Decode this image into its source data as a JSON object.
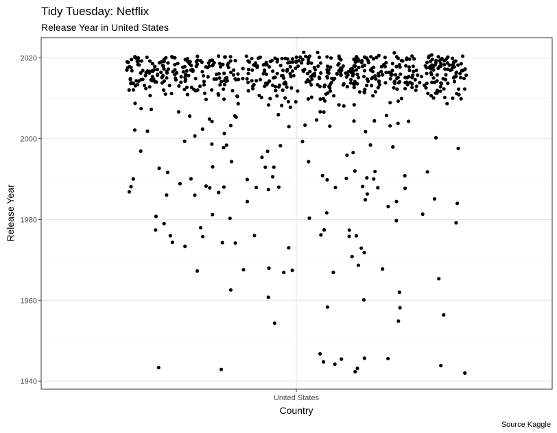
{
  "chart_data": {
    "type": "scatter",
    "title": "Tidy Tuesday: Netflix",
    "subtitle": "Release Year in United States",
    "xlabel": "Country",
    "ylabel": "Release Year",
    "caption": "Source Kaggle",
    "categories": [
      "United States"
    ],
    "x_tick_labels": [
      "United States"
    ],
    "y_ticks": [
      1940,
      1960,
      1980,
      2000,
      2020
    ],
    "ylim": [
      1938,
      2025
    ],
    "grid": true,
    "jitter": true,
    "point_color": "#000000",
    "values": [
      1976,
      1945,
      1943,
      1973,
      1990,
      1988,
      1980,
      1945,
      1967,
      1981,
      1979,
      1992,
      1943,
      1965,
      1968,
      1988,
      1989,
      1976,
      1984,
      1968,
      1954,
      1991,
      1994,
      1946,
      1982,
      1973,
      1972,
      1988,
      1987,
      1991,
      1999,
      1997,
      1998,
      1961,
      1962,
      1980,
      1944,
      1990,
      1988,
      1971,
      1967,
      1986,
      1985,
      1988,
      1996,
      1958,
      1974,
      1942,
      1990,
      1942,
      1976,
      1977,
      1981,
      1998,
      1994,
      1988,
      1993,
      1987,
      1986,
      1984,
      1958,
      1963,
      1993,
      1990,
      1992,
      1977,
      1969,
      1947,
      1976,
      1974,
      1990,
      1988,
      1986,
      1979,
      1999,
      1955,
      1973,
      1974,
      1968,
      1967,
      1993,
      1992,
      1983,
      1985,
      1978,
      1944,
      1943,
      1984,
      1976,
      1977,
      1981,
      1980,
      1988,
      1990,
      1988,
      1987,
      1946,
      1976,
      1967,
      1960,
      1991,
      1993,
      1990,
      1956,
      1988,
      1992,
      1997,
      1995,
      1998,
      1997,
      1999,
      1998,
      1998,
      1998,
      2004,
      2003,
      2003,
      2005,
      2000,
      2002,
      2001,
      2004,
      2003,
      2001,
      2002,
      2004,
      2005,
      2003,
      2002,
      2004,
      2006,
      2007,
      2005,
      2003,
      2002,
      2008,
      2006,
      2004,
      2009,
      2007,
      2010,
      2008,
      2006,
      2011,
      2009,
      2007,
      2012,
      2010,
      2008,
      2013,
      2011,
      2009,
      2014,
      2012,
      2010,
      2015,
      2013,
      2011,
      2016,
      2014,
      2012,
      2017,
      2015,
      2013,
      2018,
      2016,
      2014,
      2019,
      2017,
      2015,
      2020,
      2018,
      2016,
      2021,
      2019,
      2017,
      2020,
      2018,
      2016,
      2019,
      2017,
      2015,
      2018,
      2016,
      2014,
      2017,
      2015,
      2013,
      2016,
      2014,
      2012,
      2015,
      2013,
      2011,
      2014,
      2012,
      2010,
      2019,
      2020,
      2021,
      2018,
      2017,
      2019,
      2020,
      2018,
      2016,
      2019,
      2017,
      2020,
      2021,
      2018,
      2019,
      2020,
      2017,
      2016,
      2018,
      2019,
      2020,
      2018,
      2017,
      2019,
      2016,
      2015,
      2020,
      2019,
      2018,
      2017,
      2016,
      2021,
      2020,
      2019,
      2018,
      2017,
      2016,
      2015,
      2014,
      2013,
      2012,
      2011,
      2010,
      2009,
      2008,
      2007,
      2020,
      2019,
      2018,
      2017,
      2016,
      2015,
      2014,
      2013,
      2012,
      2011,
      2010,
      2009,
      2008,
      2007,
      2006,
      2020,
      2019,
      2018,
      2017,
      2016,
      2015,
      2020,
      2019,
      2018,
      2017,
      2016,
      2015,
      2014,
      2013,
      2020,
      2019,
      2018,
      2017,
      2021,
      2020,
      2019,
      2018,
      2017,
      2016,
      2015,
      2014,
      2013,
      2012,
      2011,
      2010,
      2009,
      2020,
      2019,
      2018,
      2017,
      2016,
      2015,
      2014,
      2020,
      2019,
      2018,
      2017,
      2016,
      2015,
      2014,
      2013,
      2012,
      2011,
      2020,
      2019,
      2018,
      2017,
      2016,
      2015,
      2020,
      2019,
      2018,
      2017,
      2016,
      2015,
      2014,
      2013,
      2012,
      2020,
      2019,
      2018,
      2017,
      2016,
      2015,
      2014,
      2013,
      2012,
      2011,
      2010,
      2020,
      2019,
      2018,
      2017,
      2016,
      2015,
      2014,
      2020,
      2019,
      2018,
      2017,
      2016,
      2015,
      2014,
      2013,
      2020,
      2019,
      2018,
      2017,
      2016,
      2015,
      2014,
      2013,
      2012,
      2011,
      2010,
      2009,
      2008,
      2020,
      2019,
      2018,
      2017,
      2016,
      2015,
      2014,
      2013,
      2020,
      2019,
      2018,
      2017,
      2016,
      2015,
      2014,
      2013,
      2012,
      2011,
      2010,
      2020,
      2019,
      2018,
      2017,
      2016,
      2015,
      2014,
      2013,
      2020,
      2019,
      2018,
      2017,
      2016,
      2015,
      2014,
      2013,
      2012,
      2020,
      2019,
      2018,
      2017,
      2016,
      2015,
      2014,
      2020,
      2019,
      2018,
      2017,
      2016,
      2015,
      2014,
      2013,
      2012,
      2011,
      2020,
      2019,
      2018,
      2017,
      2016,
      2015,
      2020,
      2019,
      2018,
      2017,
      2016,
      2015,
      2014,
      2013,
      2012,
      2011,
      2010,
      2020,
      2019,
      2018,
      2017,
      2016,
      2015,
      2014,
      2013,
      2020,
      2019,
      2018,
      2017,
      2016,
      2015,
      2014,
      2013,
      2020,
      2019,
      2018,
      2017,
      2016,
      2015,
      2014,
      2013,
      2012,
      2011,
      2010,
      2009,
      2020,
      2019,
      2018,
      2017,
      2016,
      2015,
      2014,
      2020,
      2019,
      2018,
      2017,
      2016,
      2015,
      2014,
      2013,
      2012,
      2020,
      2019,
      2018,
      2017,
      2016,
      2015,
      2020,
      2019,
      2018,
      2017,
      2016,
      2015,
      2014,
      2013,
      2012,
      2011,
      2020,
      2019,
      2018,
      2017,
      2016,
      2015,
      2014,
      2013,
      2020,
      2019,
      2018,
      2017,
      2016,
      2015,
      2014,
      2020,
      2019,
      2018,
      2017,
      2016,
      2015,
      2014,
      2013,
      2012,
      2011,
      2010,
      2020,
      2019,
      2018,
      2017,
      2016,
      2015,
      2014,
      2013,
      2020,
      2019,
      2018,
      2017,
      2016,
      2015,
      2014,
      2013,
      2012,
      2020,
      2019,
      2018,
      2017,
      2016,
      2015,
      2014,
      2020,
      2019,
      2018,
      2017,
      2016,
      2015,
      2014,
      2013,
      2020,
      2019,
      2018,
      2017,
      2016,
      2015,
      2020,
      2019,
      2018,
      2017,
      2016,
      2015,
      2014,
      2013,
      2012,
      2011,
      2020,
      2019,
      2018,
      2017,
      2016,
      2015,
      2014,
      2020,
      2019,
      2018,
      2017,
      2016,
      2015,
      2014,
      2013,
      2012,
      2020,
      2019,
      2018,
      2017,
      2016,
      2015,
      2014,
      2013,
      2020,
      2019,
      2018,
      2017,
      2016,
      2015,
      2014,
      2020,
      2019,
      2018,
      2017,
      2016,
      2015,
      2014,
      2013,
      2012,
      2011,
      2020,
      2019,
      2018,
      2017,
      2016,
      2015,
      2014,
      2020,
      2019,
      2018,
      2017,
      2016,
      2015,
      2014,
      2013,
      2020,
      2019,
      2018,
      2017,
      2016,
      2015,
      2014,
      2013,
      2012,
      2020,
      2019,
      2018,
      2017,
      2016,
      2015,
      2014,
      2020,
      2019,
      2018,
      2017,
      2016,
      2015,
      2020,
      2019,
      2018,
      2017,
      2016,
      2015,
      2014,
      2013,
      2012,
      2011,
      2010,
      2020,
      2019,
      2018,
      2017,
      2016,
      2015,
      2014,
      2013,
      2020,
      2019,
      2018,
      2017,
      2016,
      2015,
      2014,
      2020,
      2019,
      2018,
      2017,
      2016,
      2015,
      2014,
      2013,
      2012,
      2020,
      2019,
      2018,
      2017,
      2016,
      2015,
      2014,
      2013,
      2020,
      2019,
      2018,
      2017,
      2016,
      2015,
      2014,
      2013,
      2012,
      2011,
      2020,
      2019,
      2018,
      2017,
      2016,
      2015,
      2014,
      2020,
      2019,
      2018,
      2017,
      2016,
      2015,
      2014,
      2013,
      2020,
      2019,
      2018,
      2017,
      2016,
      2015,
      2020,
      2019,
      2018,
      2017,
      2016,
      2015,
      2014,
      2013,
      2012,
      2020,
      2019,
      2018,
      2017,
      2016,
      2015,
      2014,
      2013,
      2020,
      2019,
      2018,
      2017,
      2016,
      2015,
      2014,
      2013,
      2012,
      2011,
      2010,
      2020,
      2019,
      2018,
      2017,
      2016,
      2015,
      2014
    ]
  }
}
